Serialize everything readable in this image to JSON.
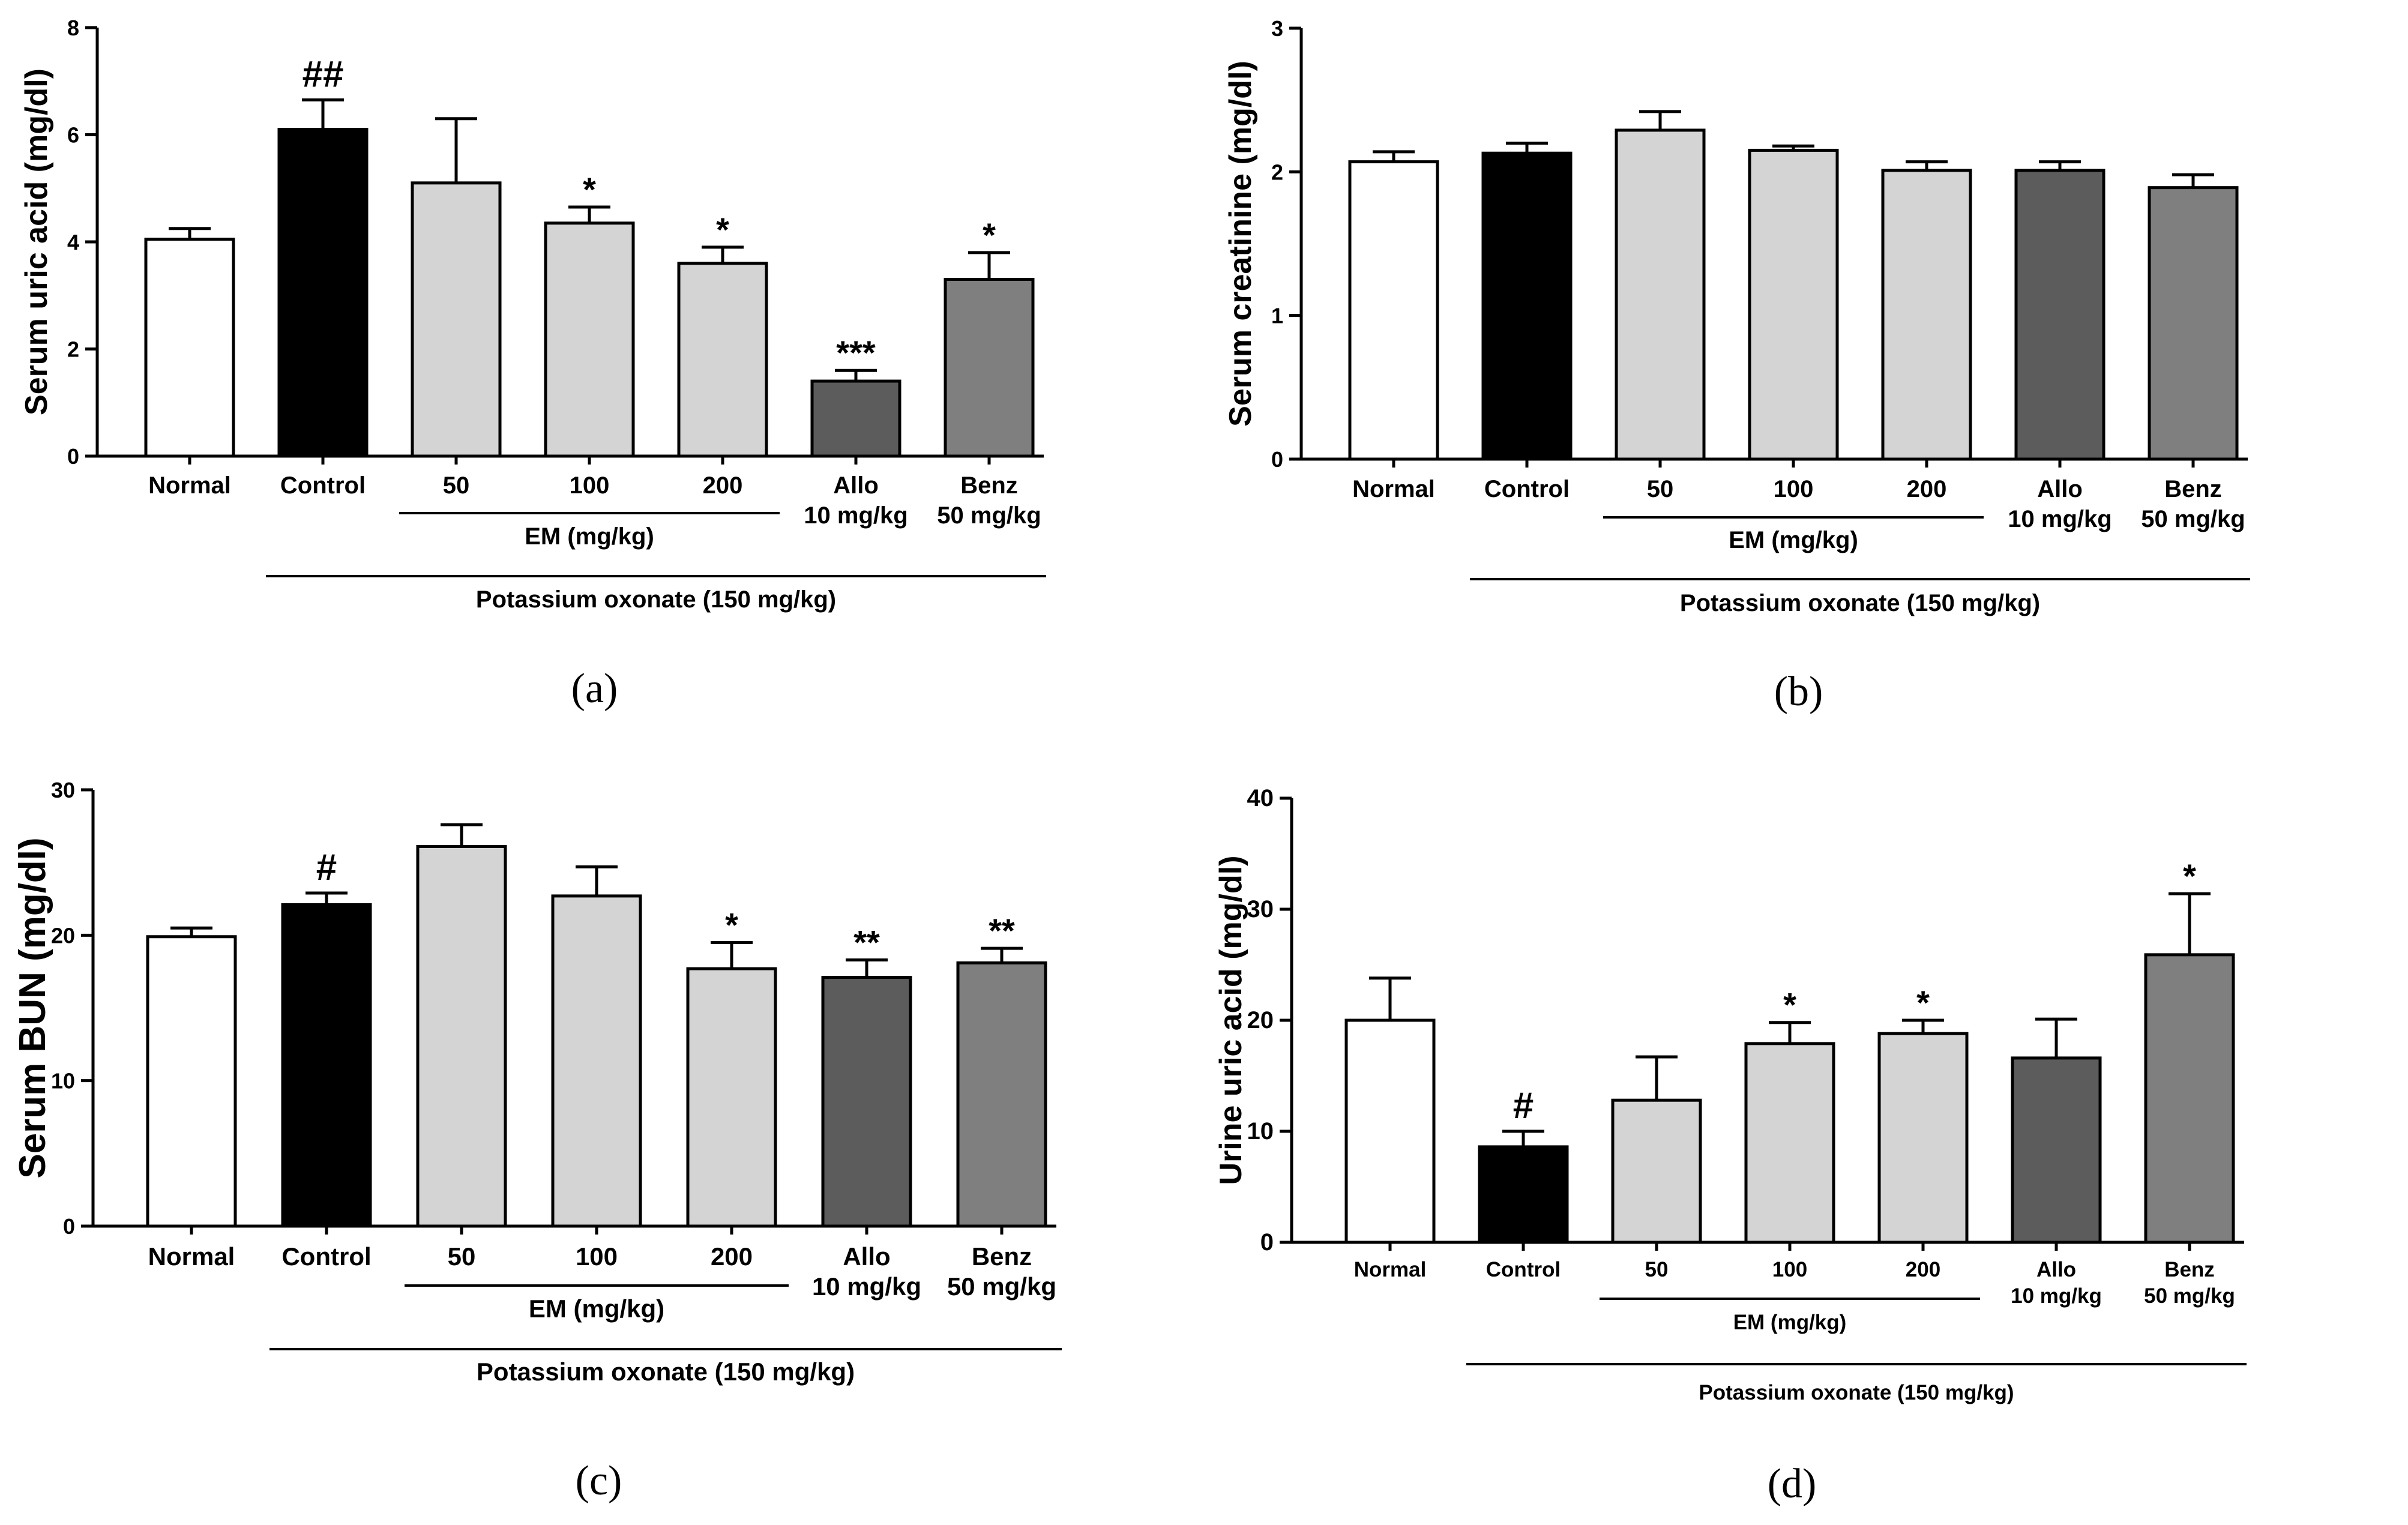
{
  "figure": {
    "group_label": "Potassium oxonate (150 mg/kg)",
    "em_label": "EM (mg/kg)"
  },
  "chart_data": [
    {
      "panel": "a",
      "caption": "(a)",
      "type": "bar",
      "ylabel": "Serum uric acid (mg/dl)",
      "ylim": [
        0,
        8
      ],
      "yticks": [
        "0",
        "2",
        "4",
        "6",
        "8"
      ],
      "categories": [
        [
          "Normal"
        ],
        [
          "Control"
        ],
        [
          "50"
        ],
        [
          "100"
        ],
        [
          "200"
        ],
        [
          "Allo",
          "10 mg/kg"
        ],
        [
          "Benz",
          "50 mg/kg"
        ]
      ],
      "values": [
        4.05,
        6.1,
        5.1,
        4.35,
        3.6,
        1.4,
        3.3
      ],
      "errors": [
        0.2,
        0.55,
        1.2,
        0.3,
        0.3,
        0.2,
        0.5
      ],
      "annotations": [
        "",
        "##",
        "",
        "*",
        "*",
        "***",
        "*"
      ],
      "colors": [
        "#ffffff",
        "#000000",
        "#d4d4d4",
        "#d4d4d4",
        "#d4d4d4",
        "#5c5c5c",
        "#7f7f7f"
      ],
      "em_range": [
        2,
        4
      ],
      "group_range": [
        1,
        6
      ]
    },
    {
      "panel": "b",
      "caption": "(b)",
      "type": "bar",
      "ylabel": "Serum creatinine (mg/dl)",
      "ylim": [
        0,
        3
      ],
      "yticks": [
        "0",
        "1",
        "2",
        "3"
      ],
      "categories": [
        [
          "Normal"
        ],
        [
          "Control"
        ],
        [
          "50"
        ],
        [
          "100"
        ],
        [
          "200"
        ],
        [
          "Allo",
          "10 mg/kg"
        ],
        [
          "Benz",
          "50 mg/kg"
        ]
      ],
      "values": [
        2.07,
        2.13,
        2.29,
        2.15,
        2.01,
        2.01,
        1.89
      ],
      "errors": [
        0.07,
        0.07,
        0.13,
        0.03,
        0.06,
        0.06,
        0.09
      ],
      "annotations": [
        "",
        "",
        "",
        "",
        "",
        "",
        ""
      ],
      "colors": [
        "#ffffff",
        "#000000",
        "#d4d4d4",
        "#d4d4d4",
        "#d4d4d4",
        "#5c5c5c",
        "#7f7f7f"
      ],
      "em_range": [
        2,
        4
      ],
      "group_range": [
        1,
        6
      ]
    },
    {
      "panel": "c",
      "caption": "(c)",
      "type": "bar",
      "ylabel": "Serum BUN (mg/dl)",
      "ylim": [
        0,
        30
      ],
      "yticks": [
        "0",
        "10",
        "20",
        "30"
      ],
      "categories": [
        [
          "Normal"
        ],
        [
          "Control"
        ],
        [
          "50"
        ],
        [
          "100"
        ],
        [
          "200"
        ],
        [
          "Allo",
          "10 mg/kg"
        ],
        [
          "Benz",
          "50 mg/kg"
        ]
      ],
      "values": [
        19.9,
        22.1,
        26.1,
        22.7,
        17.7,
        17.1,
        18.1
      ],
      "errors": [
        0.6,
        0.8,
        1.5,
        2.0,
        1.8,
        1.2,
        1.0
      ],
      "annotations": [
        "",
        "#",
        "",
        "",
        "*",
        "**",
        "**"
      ],
      "colors": [
        "#ffffff",
        "#000000",
        "#d4d4d4",
        "#d4d4d4",
        "#d4d4d4",
        "#5c5c5c",
        "#7f7f7f"
      ],
      "em_range": [
        2,
        4
      ],
      "group_range": [
        1,
        6
      ]
    },
    {
      "panel": "d",
      "caption": "(d)",
      "type": "bar",
      "ylabel": "Urine uric acid (mg/dl)",
      "ylim": [
        0,
        40
      ],
      "yticks": [
        "0",
        "10",
        "20",
        "30",
        "40"
      ],
      "categories": [
        [
          "Normal"
        ],
        [
          "Control"
        ],
        [
          "50"
        ],
        [
          "100"
        ],
        [
          "200"
        ],
        [
          "Allo",
          "10 mg/kg"
        ],
        [
          "Benz",
          "50 mg/kg"
        ]
      ],
      "values": [
        20.0,
        8.6,
        12.8,
        17.9,
        18.8,
        16.6,
        25.9
      ],
      "errors": [
        3.8,
        1.4,
        3.9,
        1.9,
        1.2,
        3.5,
        5.5
      ],
      "annotations": [
        "",
        "#",
        "",
        "*",
        "*",
        "",
        "*"
      ],
      "colors": [
        "#ffffff",
        "#000000",
        "#d4d4d4",
        "#d4d4d4",
        "#d4d4d4",
        "#5c5c5c",
        "#7f7f7f"
      ],
      "em_range": [
        2,
        4
      ],
      "group_range": [
        1,
        6
      ]
    }
  ]
}
